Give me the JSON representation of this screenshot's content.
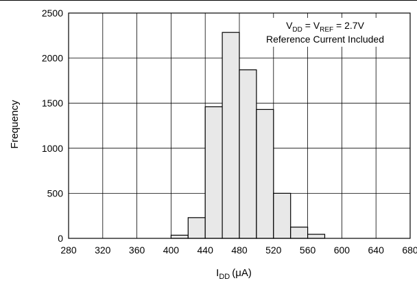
{
  "chart_data": {
    "type": "bar",
    "title": "",
    "xlabel": {
      "main": "I",
      "sub": "DD",
      "unit": "(μA)"
    },
    "ylabel": "Frequency",
    "xlim": [
      280,
      680
    ],
    "ylim": [
      0,
      2500
    ],
    "x_ticks": [
      280,
      320,
      360,
      400,
      440,
      480,
      520,
      560,
      600,
      640,
      680
    ],
    "y_ticks": [
      0,
      500,
      1000,
      1500,
      2000,
      2500
    ],
    "bin_width": 20,
    "bins": [
      {
        "start": 400,
        "end": 420,
        "value": 35
      },
      {
        "start": 420,
        "end": 440,
        "value": 230
      },
      {
        "start": 440,
        "end": 460,
        "value": 1460
      },
      {
        "start": 460,
        "end": 480,
        "value": 2285
      },
      {
        "start": 480,
        "end": 500,
        "value": 1870
      },
      {
        "start": 500,
        "end": 520,
        "value": 1430
      },
      {
        "start": 520,
        "end": 540,
        "value": 500
      },
      {
        "start": 540,
        "end": 560,
        "value": 125
      },
      {
        "start": 560,
        "end": 580,
        "value": 45
      }
    ],
    "grid": true,
    "annotation": {
      "line1": [
        "V",
        "DD",
        " = V",
        "REF",
        " = 2.7V"
      ],
      "line2": "Reference Current Included"
    },
    "colors": {
      "bar_fill": "#e8e8e8",
      "bar_stroke": "#000000",
      "grid": "#000000"
    }
  }
}
